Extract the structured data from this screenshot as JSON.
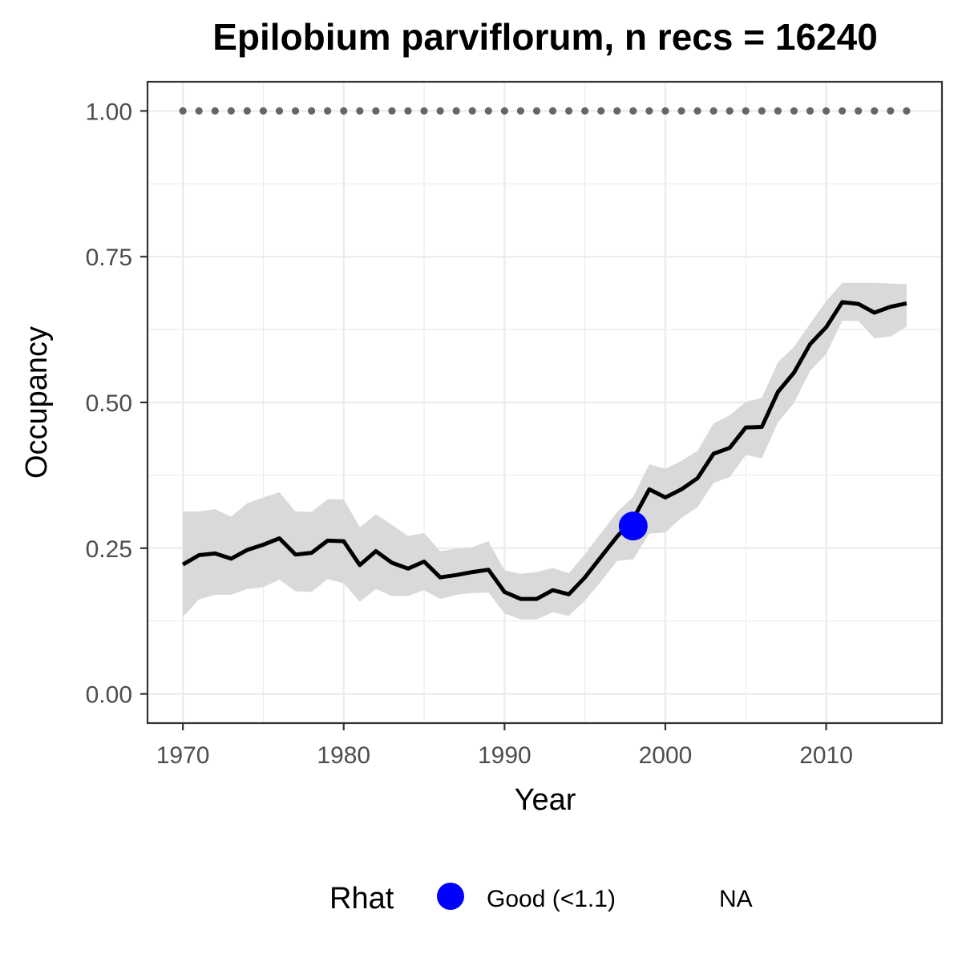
{
  "chart_data": {
    "type": "line",
    "title": "Epilobium parviflorum, n recs = 16240",
    "xlabel": "Year",
    "ylabel": "Occupancy",
    "xlim": [
      1967.8,
      2017.2
    ],
    "ylim": [
      -0.05,
      1.05
    ],
    "x_ticks": [
      1970,
      1980,
      1990,
      2000,
      2010
    ],
    "x_tick_labels": [
      "1970",
      "1980",
      "1990",
      "2000",
      "2010"
    ],
    "y_ticks": [
      0,
      0.25,
      0.5,
      0.75,
      1.0
    ],
    "y_tick_labels": [
      "0.00",
      "0.25",
      "0.50",
      "0.75",
      "1.00"
    ],
    "grid": true,
    "legend_position": "bottom",
    "series": [
      {
        "kind": "line-with-ribbon",
        "color": "#000000",
        "ribbon_color": "#d9d9d9",
        "x": [
          1970,
          1971,
          1972,
          1973,
          1974,
          1975,
          1976,
          1977,
          1978,
          1979,
          1980,
          1981,
          1982,
          1983,
          1984,
          1985,
          1986,
          1987,
          1988,
          1989,
          1990,
          1991,
          1992,
          1993,
          1994,
          1995,
          1996,
          1997,
          1998,
          1999,
          2000,
          2001,
          2002,
          2003,
          2004,
          2005,
          2006,
          2007,
          2008,
          2009,
          2010,
          2011,
          2012,
          2013,
          2014,
          2015
        ],
        "y": [
          0.222,
          0.238,
          0.241,
          0.232,
          0.247,
          0.256,
          0.267,
          0.239,
          0.242,
          0.263,
          0.262,
          0.221,
          0.245,
          0.225,
          0.215,
          0.227,
          0.2,
          0.204,
          0.209,
          0.213,
          0.175,
          0.163,
          0.163,
          0.178,
          0.171,
          0.2,
          0.235,
          0.27,
          0.3,
          0.351,
          0.337,
          0.351,
          0.37,
          0.412,
          0.422,
          0.457,
          0.458,
          0.518,
          0.551,
          0.6,
          0.629,
          0.672,
          0.669,
          0.654,
          0.664,
          0.67
        ],
        "lower": [
          0.132,
          0.162,
          0.17,
          0.17,
          0.18,
          0.183,
          0.196,
          0.176,
          0.175,
          0.197,
          0.19,
          0.158,
          0.18,
          0.168,
          0.168,
          0.178,
          0.163,
          0.17,
          0.173,
          0.174,
          0.138,
          0.128,
          0.128,
          0.14,
          0.134,
          0.16,
          0.193,
          0.228,
          0.231,
          0.275,
          0.277,
          0.302,
          0.32,
          0.362,
          0.372,
          0.41,
          0.404,
          0.466,
          0.499,
          0.554,
          0.583,
          0.64,
          0.64,
          0.61,
          0.613,
          0.63
        ],
        "upper": [
          0.313,
          0.313,
          0.317,
          0.304,
          0.327,
          0.337,
          0.346,
          0.313,
          0.312,
          0.334,
          0.334,
          0.286,
          0.308,
          0.29,
          0.271,
          0.276,
          0.245,
          0.249,
          0.252,
          0.262,
          0.212,
          0.206,
          0.209,
          0.216,
          0.207,
          0.24,
          0.276,
          0.312,
          0.338,
          0.394,
          0.386,
          0.4,
          0.417,
          0.464,
          0.478,
          0.501,
          0.508,
          0.569,
          0.595,
          0.635,
          0.674,
          0.705,
          0.705,
          0.705,
          0.704,
          0.703
        ]
      },
      {
        "kind": "reference-dots",
        "color": "#666666",
        "x": [
          1970,
          1971,
          1972,
          1973,
          1974,
          1975,
          1976,
          1977,
          1978,
          1979,
          1980,
          1981,
          1982,
          1983,
          1984,
          1985,
          1986,
          1987,
          1988,
          1989,
          1990,
          1991,
          1992,
          1993,
          1994,
          1995,
          1996,
          1997,
          1998,
          1999,
          2000,
          2001,
          2002,
          2003,
          2004,
          2005,
          2006,
          2007,
          2008,
          2009,
          2010,
          2011,
          2012,
          2013,
          2014,
          2015
        ],
        "y": 1.0
      },
      {
        "kind": "rhat-point",
        "name": "Good (<1.1)",
        "color": "#0000ff",
        "x": [
          1998
        ],
        "y": [
          0.288
        ]
      }
    ],
    "legend": {
      "title": "Rhat",
      "entries": [
        {
          "label": "Good (<1.1)",
          "color": "#0000ff",
          "marker": "circle"
        },
        {
          "label": "NA",
          "color": "",
          "marker": "none"
        }
      ]
    }
  }
}
